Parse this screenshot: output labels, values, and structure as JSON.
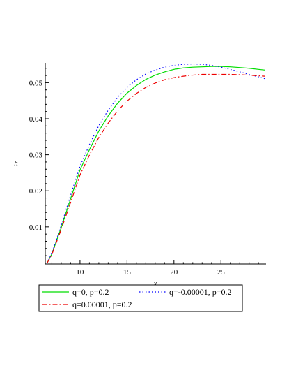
{
  "chart_data": {
    "type": "line",
    "xlabel": "x",
    "ylabel": "h",
    "xlim": [
      6.3,
      29.8
    ],
    "ylim": [
      -0.0003,
      0.0555
    ],
    "x_ticks": [
      10,
      15,
      20,
      25
    ],
    "x_tick_labels": [
      "10",
      "15",
      "20",
      "25"
    ],
    "y_ticks": [
      0.01,
      0.02,
      0.03,
      0.04,
      0.05
    ],
    "y_tick_labels": [
      "0.01",
      "0.02",
      "0.03",
      "0.04",
      "0.05"
    ],
    "legend_placement": "bottom",
    "series": [
      {
        "name": "q=0, p=0.2",
        "color": "#00dd00",
        "dash": "solid",
        "x": [
          6.5,
          7,
          8,
          9,
          10,
          11,
          12,
          13,
          14,
          15,
          16,
          17,
          18,
          19,
          20,
          21,
          22,
          23,
          24,
          25,
          26,
          27,
          28,
          29,
          29.7
        ],
        "y": [
          0.0,
          0.0025,
          0.0098,
          0.0178,
          0.0258,
          0.0314,
          0.0366,
          0.0408,
          0.0443,
          0.0471,
          0.0492,
          0.0509,
          0.0521,
          0.053,
          0.0537,
          0.0541,
          0.0543,
          0.0544,
          0.0545,
          0.0545,
          0.0544,
          0.0542,
          0.054,
          0.0537,
          0.0535
        ]
      },
      {
        "name": "q=-0.00001, p=0.2",
        "color": "#0000ff",
        "dash": "dot",
        "x": [
          6.5,
          7,
          8,
          9,
          10,
          11,
          12,
          13,
          14,
          15,
          16,
          17,
          18,
          19,
          20,
          21,
          22,
          23,
          24,
          25,
          26,
          27,
          28,
          29,
          29.7
        ],
        "y": [
          0.0,
          0.0027,
          0.0104,
          0.0188,
          0.0268,
          0.0328,
          0.0381,
          0.0424,
          0.0459,
          0.0487,
          0.0508,
          0.0524,
          0.0535,
          0.0543,
          0.0548,
          0.0551,
          0.0552,
          0.0551,
          0.0548,
          0.0543,
          0.0537,
          0.053,
          0.0523,
          0.0516,
          0.0511
        ]
      },
      {
        "name": "q=0.00001, p=0.2",
        "color": "#ee0000",
        "dash": "dashdot",
        "x": [
          6.5,
          7,
          8,
          9,
          10,
          11,
          12,
          13,
          14,
          15,
          16,
          17,
          18,
          19,
          20,
          21,
          22,
          23,
          24,
          25,
          26,
          27,
          28,
          29,
          29.7
        ],
        "y": [
          0.0,
          0.0023,
          0.0093,
          0.0168,
          0.0244,
          0.0299,
          0.0348,
          0.0388,
          0.0422,
          0.0449,
          0.047,
          0.0487,
          0.0499,
          0.0508,
          0.0514,
          0.0518,
          0.0521,
          0.0523,
          0.0523,
          0.0523,
          0.0523,
          0.0522,
          0.0521,
          0.0519,
          0.0518
        ]
      }
    ]
  }
}
